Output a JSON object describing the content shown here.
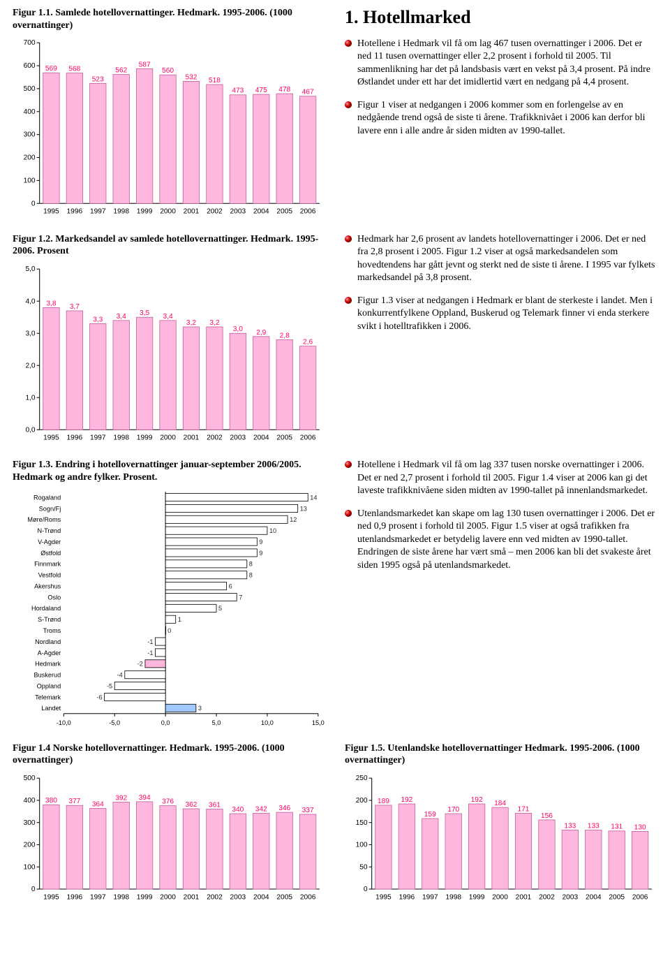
{
  "years": [
    "1995",
    "1996",
    "1997",
    "1998",
    "1999",
    "2000",
    "2001",
    "2002",
    "2003",
    "2004",
    "2005",
    "2006"
  ],
  "section1_title": "1. Hotellmarked",
  "fig11": {
    "caption": "Figur 1.1. Samlede hotellovernattinger. Hedmark. 1995-2006. (1000 overnattinger)",
    "type": "bar",
    "ylim": [
      0,
      700
    ],
    "ystep": 100,
    "values": [
      569,
      568,
      523,
      562,
      587,
      560,
      532,
      518,
      473,
      475,
      478,
      467
    ],
    "bar_color": "#ffb7dd",
    "bar_border": "#c060a0",
    "label_color": "#ff0066",
    "bg": "#ffffff",
    "axis_color": "#000000",
    "label_fs": 10
  },
  "fig12": {
    "caption": "Figur 1.2. Markedsandel av samlede hotellovernattinger. Hedmark. 1995-2006. Prosent",
    "type": "bar",
    "ylim": [
      0,
      5.0
    ],
    "ystep": 1.0,
    "values": [
      3.8,
      3.7,
      3.3,
      3.4,
      3.5,
      3.4,
      3.2,
      3.2,
      3.0,
      2.9,
      2.8,
      2.6
    ],
    "bar_color": "#ffb7dd",
    "bar_border": "#c060a0",
    "label_color": "#ff0066",
    "bg": "#ffffff",
    "axis_color": "#000000",
    "label_fs": 10,
    "decimals": 1
  },
  "fig13": {
    "caption": "Figur 1.3. Endring i hotellovernattinger januar-september 2006/2005. Hedmark og andre fylker. Prosent.",
    "type": "hbar",
    "xlim": [
      -10,
      15
    ],
    "xstep": 5,
    "categories": [
      "Rogaland",
      "Sogn/Fj",
      "Møre/Roms",
      "N-Trønd",
      "V-Agder",
      "Østfold",
      "Finnmark",
      "Vestfold",
      "Akershus",
      "Oslo",
      "Hordaland",
      "S-Trønd",
      "Troms",
      "Nordland",
      "A-Agder",
      "Hedmark",
      "Buskerud",
      "Oppland",
      "Telemark",
      "Landet"
    ],
    "values": [
      14,
      13,
      12,
      10,
      9,
      9,
      8,
      8,
      6,
      7,
      5,
      1,
      0,
      -1,
      -1,
      -2,
      -4,
      -5,
      -6,
      3
    ],
    "highlight_index": 15,
    "highlight_color": "#ffb7dd",
    "highlight2_index": 19,
    "highlight2_color": "#9fc9ff",
    "bar_color": "#ffffff",
    "bar_border": "#000000",
    "label_color": "#2b2b2b",
    "bg": "#ffffff",
    "axis_color": "#000000",
    "label_fs": 9
  },
  "fig14": {
    "caption": "Figur 1.4 Norske hotellovernattinger. Hedmark. 1995-2006. (1000 overnattinger)",
    "type": "bar",
    "ylim": [
      0,
      500
    ],
    "ystep": 100,
    "values": [
      380,
      377,
      364,
      392,
      394,
      376,
      362,
      361,
      340,
      342,
      346,
      337
    ],
    "bar_color": "#ffb7dd",
    "bar_border": "#c060a0",
    "label_color": "#ff0066",
    "bg": "#ffffff",
    "axis_color": "#000000",
    "label_fs": 10
  },
  "fig15": {
    "caption": "Figur 1.5. Utenlandske hotellovernattinger Hedmark. 1995-2006. (1000 overnattinger)",
    "type": "bar",
    "ylim": [
      0,
      250
    ],
    "ystep": 50,
    "values": [
      189,
      192,
      159,
      170,
      192,
      184,
      171,
      156,
      133,
      133,
      131,
      130
    ],
    "bar_color": "#ffb7dd",
    "bar_border": "#c060a0",
    "label_color": "#ff0066",
    "bg": "#ffffff",
    "axis_color": "#000000",
    "label_fs": 10
  },
  "text": {
    "p1": "Hotellene i Hedmark vil få om lag 467 tusen overnattinger i 2006. Det er ned 11 tusen overnattinger eller 2,2 prosent i forhold til 2005. Til sammenlikning har det på landsbasis vært en vekst på 3,4 prosent. På indre Østlandet under ett har det imidlertid vært en nedgang på 4,4 prosent.",
    "p2": "Figur 1 viser at nedgangen i 2006 kommer som en forlengelse av en nedgående trend også de siste ti årene. Trafikknivået i 2006 kan derfor bli lavere enn i alle andre år siden midten av 1990-tallet.",
    "p3": "Hedmark har 2,6 prosent av landets hotellovernattinger i 2006. Det er ned fra 2,8 prosent i 2005. Figur 1.2 viser at også markedsandelen som hovedtendens har gått jevnt og sterkt ned de siste ti årene. I 1995 var fylkets markedsandel på 3,8 prosent.",
    "p4": "Figur 1.3 viser at nedgangen i Hedmark er blant de sterkeste i landet. Men i konkurrentfylkene Oppland, Buskerud og Telemark finner vi enda sterkere svikt i hotelltrafikken i 2006.",
    "p5": "Hotellene i Hedmark vil få om lag 337 tusen norske overnattinger i 2006. Det er ned 2,7 prosent i forhold til 2005. Figur 1.4 viser at 2006 kan gi det laveste trafikknivåene siden midten av 1990-tallet på innenlandsmarkedet.",
    "p6": "Utenlandsmarkedet kan skape om lag 130 tusen overnattinger i 2006. Det er ned 0,9 prosent i forhold til 2005. Figur 1.5 viser at også trafikken fra utenlandsmarkedet er betydelig lavere enn ved midten av 1990-tallet. Endringen de siste årene har vært små – men 2006 kan bli det svakeste året siden 1995 også på utenlandsmarkedet."
  }
}
